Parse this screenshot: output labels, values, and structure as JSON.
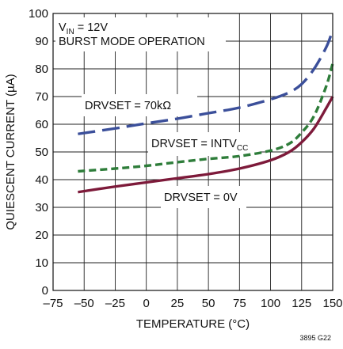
{
  "chart_data": {
    "type": "line",
    "title": "",
    "xlabel": "TEMPERATURE (°C)",
    "ylabel": "QUIESCENT CURRENT (µA)",
    "xlim": [
      -75,
      150
    ],
    "ylim": [
      0,
      100
    ],
    "x_ticks": [
      "–75",
      "–50",
      "–25",
      "0",
      "25",
      "50",
      "75",
      "100",
      "125",
      "150"
    ],
    "y_ticks": [
      "0",
      "10",
      "20",
      "30",
      "40",
      "50",
      "60",
      "70",
      "80",
      "90",
      "100"
    ],
    "grid": true,
    "legend": "none",
    "conditions": {
      "vin_prefix": "V",
      "vin_sub": "IN",
      "vin_suffix": " = 12V",
      "mode": "BURST MODE OPERATION"
    },
    "series": [
      {
        "name": "DRVSET = 70kΩ",
        "color": "#3b4f9a",
        "dash": "long-dash",
        "x": [
          -55,
          -25,
          0,
          25,
          50,
          75,
          100,
          115,
          125,
          135,
          145,
          150
        ],
        "y": [
          56.5,
          58.5,
          60.3,
          62,
          64,
          66,
          69,
          71.5,
          74.5,
          80,
          88,
          94
        ]
      },
      {
        "name": "DRVSET = INTVCC",
        "color": "#2e7d3a",
        "dash": "short-dash",
        "x": [
          -55,
          -25,
          0,
          25,
          50,
          75,
          100,
          115,
          125,
          135,
          145,
          150
        ],
        "y": [
          43,
          44,
          45,
          46.3,
          47.5,
          48.5,
          50.5,
          53,
          57,
          63,
          74,
          82
        ]
      },
      {
        "name": "DRVSET = 0V",
        "color": "#7d1a3a",
        "dash": "solid",
        "x": [
          -55,
          -25,
          0,
          25,
          50,
          75,
          100,
          115,
          125,
          135,
          145,
          150
        ],
        "y": [
          35.5,
          37.5,
          39,
          40.5,
          42,
          44,
          47,
          50,
          53.5,
          58.5,
          66,
          70
        ]
      }
    ],
    "annotations": {
      "drv70k": "DRVSET = 70kΩ",
      "drvintvcc_main": "DRVSET = INTV",
      "drvintvcc_sub": "CC",
      "drv0v": "DRVSET = 0V"
    },
    "figure_id": "3895 G22"
  }
}
